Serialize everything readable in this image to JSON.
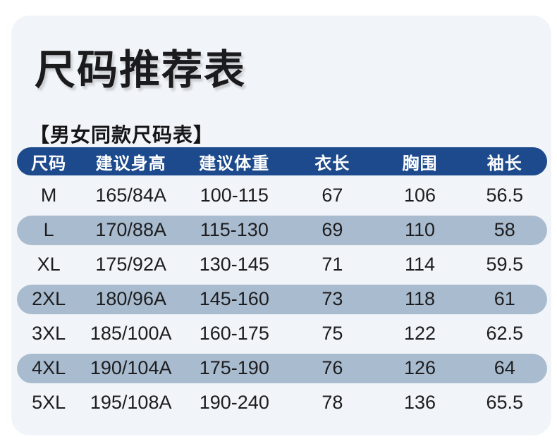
{
  "title": "尺码推荐表",
  "subtitle": "【男女同款尺码表】",
  "colors": {
    "page_bg": "#ffffff",
    "card_bg": "#f1f4f8",
    "header_bg": "#1c4a8c",
    "header_text": "#ffffff",
    "alt_row_bg": "#a9bccf",
    "body_text": "#1d1d1f"
  },
  "size_table": {
    "columns": [
      "尺码",
      "建议身高",
      "建议体重",
      "衣长",
      "胸围",
      "袖长"
    ],
    "rows": [
      {
        "highlighted": false,
        "cells": [
          "M",
          "165/84A",
          "100-115",
          "67",
          "106",
          "56.5"
        ]
      },
      {
        "highlighted": true,
        "cells": [
          "L",
          "170/88A",
          "115-130",
          "69",
          "110",
          "58"
        ]
      },
      {
        "highlighted": false,
        "cells": [
          "XL",
          "175/92A",
          "130-145",
          "71",
          "114",
          "59.5"
        ]
      },
      {
        "highlighted": true,
        "cells": [
          "2XL",
          "180/96A",
          "145-160",
          "73",
          "118",
          "61"
        ]
      },
      {
        "highlighted": false,
        "cells": [
          "3XL",
          "185/100A",
          "160-175",
          "75",
          "122",
          "62.5"
        ]
      },
      {
        "highlighted": true,
        "cells": [
          "4XL",
          "190/104A",
          "175-190",
          "76",
          "126",
          "64"
        ]
      },
      {
        "highlighted": false,
        "cells": [
          "5XL",
          "195/108A",
          "190-240",
          "78",
          "136",
          "65.5"
        ]
      }
    ]
  },
  "chart_data": {
    "type": "table",
    "title": "尺码推荐表",
    "subtitle": "【男女同款尺码表】",
    "columns": [
      "尺码",
      "建议身高",
      "建议体重",
      "衣长",
      "胸围",
      "袖长"
    ],
    "rows": [
      [
        "M",
        "165/84A",
        "100-115",
        "67",
        "106",
        "56.5"
      ],
      [
        "L",
        "170/88A",
        "115-130",
        "69",
        "110",
        "58"
      ],
      [
        "XL",
        "175/92A",
        "130-145",
        "71",
        "114",
        "59.5"
      ],
      [
        "2XL",
        "180/96A",
        "145-160",
        "73",
        "118",
        "61"
      ],
      [
        "3XL",
        "185/100A",
        "160-175",
        "75",
        "122",
        "62.5"
      ],
      [
        "4XL",
        "190/104A",
        "175-190",
        "76",
        "126",
        "64"
      ],
      [
        "5XL",
        "195/108A",
        "190-240",
        "78",
        "136",
        "65.5"
      ]
    ]
  }
}
